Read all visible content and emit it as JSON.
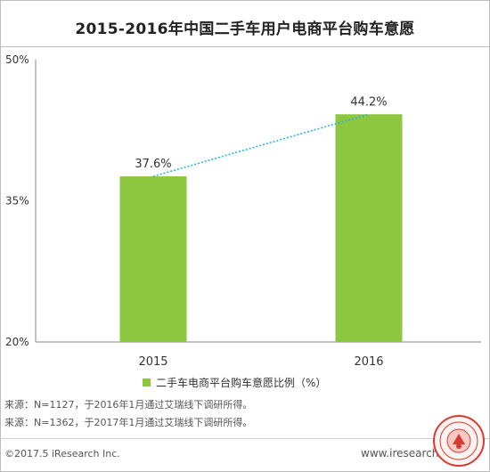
{
  "chart_data": {
    "type": "bar",
    "title": "2015-2016年中国二手车用户电商平台购车意愿",
    "categories": [
      "2015",
      "2016"
    ],
    "series": [
      {
        "name": "二手车电商平台购车意愿比例（%）",
        "values": [
          37.6,
          44.2
        ]
      }
    ],
    "data_labels": [
      "37.6%",
      "44.2%"
    ],
    "trend_line": true,
    "ylim": [
      20,
      50
    ],
    "y_ticks": [
      20,
      35,
      50
    ],
    "y_tick_labels": [
      "20%",
      "35%",
      "50%"
    ],
    "xlabel": "",
    "ylabel": "",
    "grid": false,
    "legend_position": "bottom"
  },
  "colors": {
    "bar": "#8dc63f",
    "trend_line": "#29b6e8",
    "seal": "#d73a31"
  },
  "notes": [
    "来源：N=1127，于2016年1月通过艾瑞线下调研所得。",
    "来源：N=1362，于2017年1月通过艾瑞线下调研所得。"
  ],
  "footer": {
    "copyright": "©2017.5 iResearch Inc.",
    "website": "www.iresearch.com.cn"
  },
  "seal_icon": "university-seal-icon"
}
